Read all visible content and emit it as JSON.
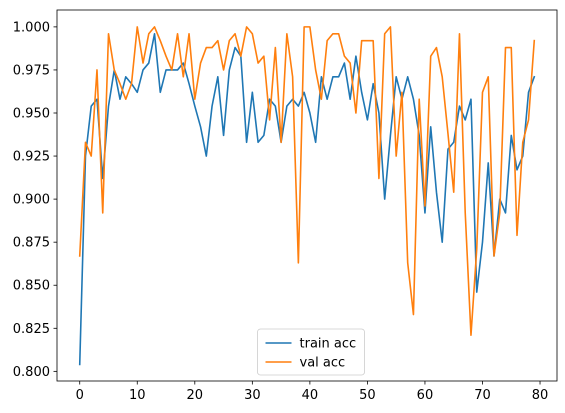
{
  "chart_data": {
    "type": "line",
    "x": [
      0,
      1,
      2,
      3,
      4,
      5,
      6,
      7,
      8,
      9,
      10,
      11,
      12,
      13,
      14,
      15,
      16,
      17,
      18,
      19,
      20,
      21,
      22,
      23,
      24,
      25,
      26,
      27,
      28,
      29,
      30,
      31,
      32,
      33,
      34,
      35,
      36,
      37,
      38,
      39,
      40,
      41,
      42,
      43,
      44,
      45,
      46,
      47,
      48,
      49,
      50,
      51,
      52,
      53,
      54,
      55,
      56,
      57,
      58,
      59,
      60,
      61,
      62,
      63,
      64,
      65,
      66,
      67,
      68,
      69,
      70,
      71,
      72,
      73,
      74,
      75,
      76,
      77,
      78,
      79
    ],
    "series": [
      {
        "name": "train acc",
        "color": "#1f77b4",
        "values": [
          0.804,
          0.925,
          0.954,
          0.958,
          0.912,
          0.954,
          0.975,
          0.958,
          0.971,
          0.967,
          0.962,
          0.975,
          0.979,
          0.996,
          0.962,
          0.975,
          0.975,
          0.975,
          0.979,
          0.967,
          0.954,
          0.942,
          0.925,
          0.954,
          0.971,
          0.937,
          0.975,
          0.988,
          0.983,
          0.933,
          0.962,
          0.933,
          0.937,
          0.958,
          0.954,
          0.933,
          0.954,
          0.958,
          0.954,
          0.962,
          0.95,
          0.933,
          0.971,
          0.958,
          0.971,
          0.971,
          0.979,
          0.958,
          0.983,
          0.962,
          0.946,
          0.967,
          0.95,
          0.9,
          0.937,
          0.971,
          0.958,
          0.971,
          0.958,
          0.937,
          0.892,
          0.942,
          0.904,
          0.875,
          0.929,
          0.933,
          0.954,
          0.946,
          0.958,
          0.846,
          0.875,
          0.921,
          0.867,
          0.9,
          0.892,
          0.937,
          0.917,
          0.925,
          0.962,
          0.971
        ]
      },
      {
        "name": "val acc",
        "color": "#ff7f0e",
        "values": [
          0.867,
          0.933,
          0.925,
          0.975,
          0.892,
          0.996,
          0.975,
          0.967,
          0.958,
          0.967,
          1.0,
          0.979,
          0.996,
          1.0,
          0.992,
          0.983,
          0.975,
          0.996,
          0.971,
          0.996,
          0.958,
          0.979,
          0.988,
          0.988,
          0.992,
          0.975,
          0.992,
          0.996,
          0.983,
          1.0,
          0.996,
          0.979,
          0.983,
          0.946,
          0.988,
          0.933,
          0.996,
          0.971,
          0.863,
          1.0,
          1.0,
          0.975,
          0.958,
          0.992,
          0.996,
          0.996,
          0.983,
          0.979,
          0.95,
          0.992,
          0.992,
          0.992,
          0.912,
          0.996,
          1.0,
          0.925,
          0.962,
          0.863,
          0.833,
          0.958,
          0.896,
          0.983,
          0.988,
          0.971,
          0.938,
          0.904,
          0.996,
          0.892,
          0.821,
          0.871,
          0.962,
          0.971,
          0.867,
          0.892,
          0.988,
          0.988,
          0.879,
          0.933,
          0.946,
          0.992
        ]
      }
    ],
    "xlim": [
      -3.95,
      82.95
    ],
    "ylim": [
      0.7944,
      1.0098
    ],
    "xticks": [
      0,
      10,
      20,
      30,
      40,
      50,
      60,
      70,
      80
    ],
    "yticks": [
      0.8,
      0.825,
      0.85,
      0.875,
      0.9,
      0.925,
      0.95,
      0.975,
      1.0
    ],
    "xtick_labels": [
      "0",
      "10",
      "20",
      "30",
      "40",
      "50",
      "60",
      "70",
      "80"
    ],
    "ytick_labels": [
      "0.800",
      "0.825",
      "0.850",
      "0.875",
      "0.900",
      "0.925",
      "0.950",
      "0.975",
      "1.000"
    ],
    "title": "",
    "xlabel": "",
    "ylabel": "",
    "grid": false,
    "legend_position": "lower center"
  }
}
